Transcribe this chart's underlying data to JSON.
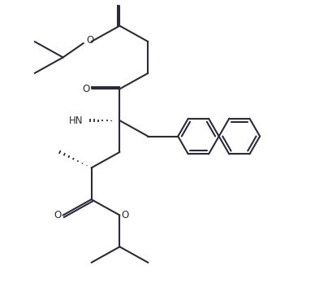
{
  "background": "#ffffff",
  "line_color": "#2b2b3b",
  "line_width": 1.5,
  "figsize": [
    3.88,
    3.7
  ],
  "dpi": 100,
  "xlim": [
    0,
    10
  ],
  "ylim": [
    0,
    9.5
  ]
}
